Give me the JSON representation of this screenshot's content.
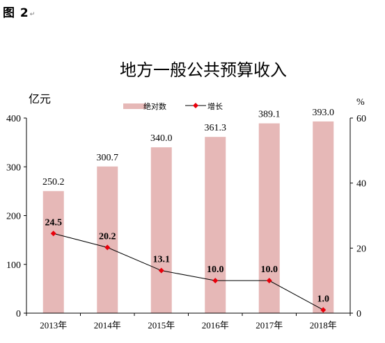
{
  "figure_label": "图 2",
  "chart_data": {
    "type": "bar",
    "title": "地方一般公共预算收入",
    "ylabel_left": "亿元",
    "ylabel_right": "%",
    "categories": [
      "2013年",
      "2014年",
      "2015年",
      "2016年",
      "2017年",
      "2018年"
    ],
    "ylim_left": [
      0,
      400
    ],
    "yticks_left": [
      "0",
      "100",
      "200",
      "300",
      "400"
    ],
    "ylim_right": [
      0,
      60
    ],
    "yticks_right": [
      "0",
      "20",
      "40",
      "60"
    ],
    "legend_position": "top-center",
    "grid": false,
    "series": [
      {
        "name": "绝对数",
        "type": "bar",
        "axis": "left",
        "color": "#e6b8b7",
        "values": [
          250.2,
          300.7,
          340.0,
          361.3,
          389.1,
          393.0
        ],
        "labels": [
          "250.2",
          "300.7",
          "340.0",
          "361.3",
          "389.1",
          "393.0"
        ]
      },
      {
        "name": "增长",
        "type": "line",
        "axis": "right",
        "color": "#000000",
        "marker_color": "#e8000b",
        "values": [
          24.5,
          20.2,
          13.1,
          10.0,
          10.0,
          1.0
        ],
        "labels": [
          "24.5",
          "20.2",
          "13.1",
          "10.0",
          "10.0",
          "1.0"
        ]
      }
    ]
  }
}
